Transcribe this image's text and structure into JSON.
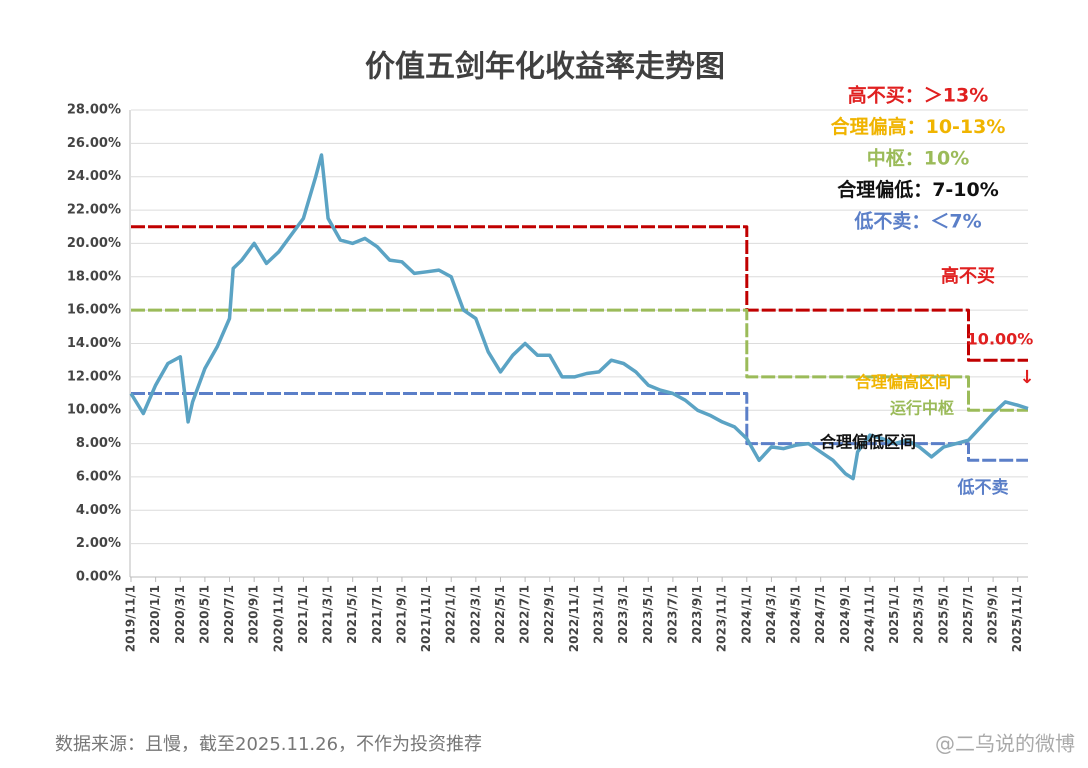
{
  "chart_data": {
    "type": "line",
    "title": "价值五剑年化收益率走势图",
    "xlim": [
      "2019/11/1",
      "2025/11/26"
    ],
    "xticks": [
      "2019/11/1",
      "2020/1/1",
      "2020/3/1",
      "2020/5/1",
      "2020/7/1",
      "2020/9/1",
      "2020/11/1",
      "2021/1/1",
      "2021/3/1",
      "2021/5/1",
      "2021/7/1",
      "2021/9/1",
      "2021/11/1",
      "2022/1/1",
      "2022/3/1",
      "2022/5/1",
      "2022/7/1",
      "2022/9/1",
      "2022/11/1",
      "2023/1/1",
      "2023/3/1",
      "2023/5/1",
      "2023/7/1",
      "2023/9/1",
      "2023/11/1",
      "2024/1/1",
      "2024/3/1",
      "2024/5/1",
      "2024/7/1",
      "2024/9/1",
      "2024/11/1",
      "2025/1/1",
      "2025/3/1",
      "2025/5/1",
      "2025/7/1",
      "2025/9/1",
      "2025/11/1"
    ],
    "ylim": [
      0,
      28
    ],
    "yticks": [
      {
        "value": 0,
        "label": "0.00%"
      },
      {
        "value": 2,
        "label": "2.00%"
      },
      {
        "value": 4,
        "label": "4.00%"
      },
      {
        "value": 6,
        "label": "6.00%"
      },
      {
        "value": 8,
        "label": "8.00%"
      },
      {
        "value": 10,
        "label": "10.00%"
      },
      {
        "value": 12,
        "label": "12.00%"
      },
      {
        "value": 14,
        "label": "14.00%"
      },
      {
        "value": 16,
        "label": "16.00%"
      },
      {
        "value": 18,
        "label": "18.00%"
      },
      {
        "value": 20,
        "label": "20.00%"
      },
      {
        "value": 22,
        "label": "22.00%"
      },
      {
        "value": 24,
        "label": "24.00%"
      },
      {
        "value": 26,
        "label": "26.00%"
      },
      {
        "value": 28,
        "label": "28.00%"
      }
    ],
    "grid": true,
    "series": [
      {
        "color": "#5ba3c4",
        "x": [
          "2019/11/1",
          "2019/12/1",
          "2020/1/1",
          "2020/2/1",
          "2020/3/1",
          "2020/3/20",
          "2020/4/1",
          "2020/5/1",
          "2020/6/1",
          "2020/7/1",
          "2020/7/10",
          "2020/8/1",
          "2020/9/1",
          "2020/10/1",
          "2020/11/1",
          "2020/12/1",
          "2021/1/1",
          "2021/2/1",
          "2021/2/15",
          "2021/3/1",
          "2021/4/1",
          "2021/5/1",
          "2021/6/1",
          "2021/7/1",
          "2021/8/1",
          "2021/9/1",
          "2021/10/1",
          "2021/11/1",
          "2021/12/1",
          "2022/1/1",
          "2022/2/1",
          "2022/3/1",
          "2022/4/1",
          "2022/5/1",
          "2022/6/1",
          "2022/7/1",
          "2022/8/1",
          "2022/9/1",
          "2022/10/1",
          "2022/11/1",
          "2022/12/1",
          "2023/1/1",
          "2023/2/1",
          "2023/3/1",
          "2023/4/1",
          "2023/5/1",
          "2023/6/1",
          "2023/7/1",
          "2023/8/1",
          "2023/9/1",
          "2023/10/1",
          "2023/11/1",
          "2023/12/1",
          "2024/1/1",
          "2024/2/1",
          "2024/3/1",
          "2024/4/1",
          "2024/5/1",
          "2024/6/1",
          "2024/7/1",
          "2024/8/1",
          "2024/9/1",
          "2024/9/20",
          "2024/10/1",
          "2024/11/1",
          "2024/12/1",
          "2025/1/1",
          "2025/2/1",
          "2025/3/1",
          "2025/4/1",
          "2025/5/1",
          "2025/6/1",
          "2025/7/1",
          "2025/8/1",
          "2025/9/1",
          "2025/10/1",
          "2025/11/1",
          "2025/11/26"
        ],
        "values": [
          11.0,
          9.8,
          11.5,
          12.8,
          13.2,
          9.3,
          10.5,
          12.5,
          13.8,
          15.5,
          18.5,
          19.0,
          20.0,
          18.8,
          19.5,
          20.5,
          21.5,
          24.0,
          25.3,
          21.5,
          20.2,
          20.0,
          20.3,
          19.8,
          19.0,
          18.9,
          18.2,
          18.3,
          18.4,
          18.0,
          16.0,
          15.5,
          13.5,
          12.3,
          13.3,
          14.0,
          13.3,
          13.3,
          12.0,
          12.0,
          12.2,
          12.3,
          13.0,
          12.8,
          12.3,
          11.5,
          11.2,
          11.0,
          10.6,
          10.0,
          9.7,
          9.3,
          9.0,
          8.3,
          7.0,
          7.8,
          7.7,
          7.9,
          8.0,
          7.5,
          7.0,
          6.2,
          5.9,
          7.5,
          8.5,
          8.3,
          8.0,
          8.2,
          7.8,
          7.2,
          7.8,
          8.0,
          8.2,
          9.0,
          9.8,
          10.5,
          10.3,
          10.1
        ]
      },
      {
        "color": "#c00000",
        "x": [
          "2019/11/1",
          "2024/1/1",
          "2024/1/1",
          "2025/7/1",
          "2025/7/1",
          "2025/11/26"
        ],
        "values": [
          21,
          21,
          16,
          16,
          13,
          13
        ]
      },
      {
        "color": "#9bbb59",
        "x": [
          "2019/11/1",
          "2024/1/1",
          "2024/1/1",
          "2025/7/1",
          "2025/7/1",
          "2025/11/26"
        ],
        "values": [
          16,
          16,
          12,
          12,
          10,
          10
        ]
      },
      {
        "color": "#5b7fc8",
        "x": [
          "2019/11/1",
          "2024/1/1",
          "2024/1/1",
          "2025/7/1",
          "2025/7/1",
          "2025/11/26"
        ],
        "values": [
          11,
          11,
          8,
          8,
          7,
          7
        ]
      }
    ],
    "legend": [
      {
        "text": "高不买：＞13%",
        "color": "#e02020"
      },
      {
        "text": "合理偏高：10-13%",
        "color": "#f0b400"
      },
      {
        "text": "中枢：10%",
        "color": "#9bbb59"
      },
      {
        "text": "合理偏低：7-10%",
        "color": "#111111"
      },
      {
        "text": "低不卖：＜7%",
        "color": "#5b7fc8"
      }
    ],
    "annotations": [
      {
        "text": "高不买",
        "color": "#e02020"
      },
      {
        "text": "10.00%",
        "color": "#e02020"
      },
      {
        "text": "↓",
        "color": "#e02020"
      },
      {
        "text": "合理偏高区间",
        "color": "#f0b400"
      },
      {
        "text": "运行中枢",
        "color": "#9bbb59"
      },
      {
        "text": "合理偏低区间",
        "color": "#111111"
      },
      {
        "text": "低不卖",
        "color": "#5b7fc8"
      }
    ],
    "source": "数据来源：且慢，截至2025.11.26，不作为投资推荐",
    "watermark": "@二乌说的微博"
  }
}
